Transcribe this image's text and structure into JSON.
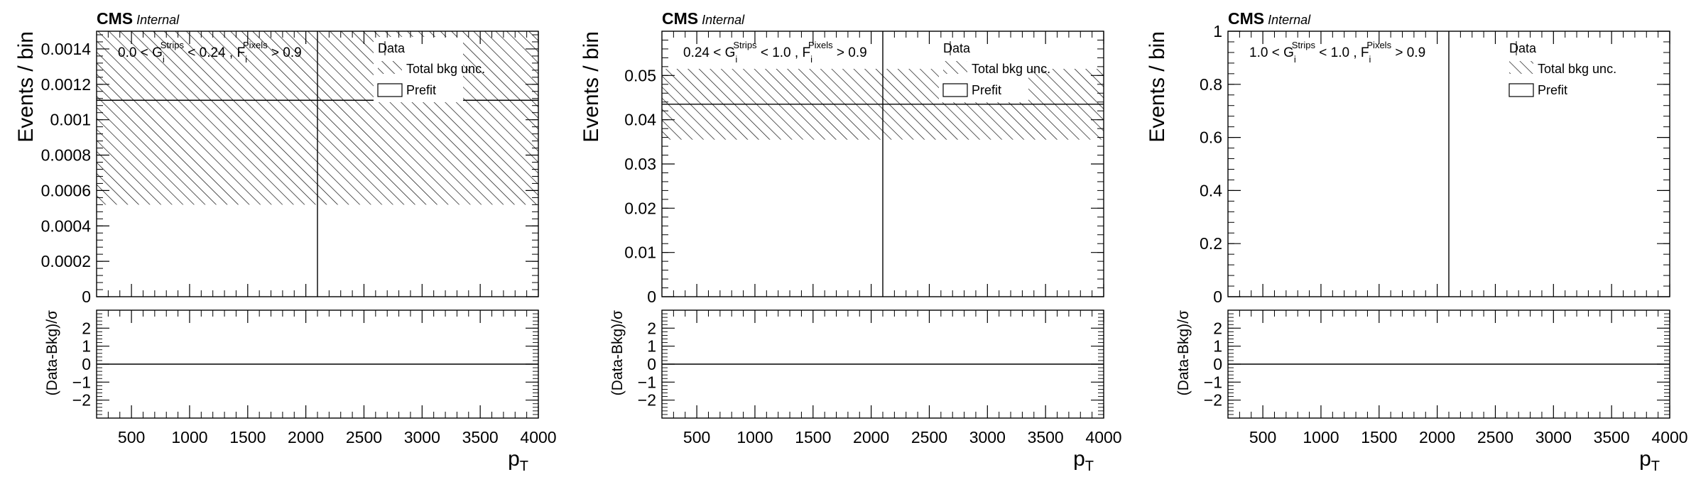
{
  "chart_data": [
    {
      "type": "bar",
      "header": {
        "experiment": "CMS",
        "status": "Internal"
      },
      "region": {
        "lo": "0.0",
        "hi": "0.24",
        "cut": "0.9",
        "sym1": "G",
        "sup1": "Strips",
        "sym2": "F",
        "sup2": "Pixels",
        "sub": "i"
      },
      "ylabel": "Events / bin",
      "ratio_ylabel": "(Data-Bkg)/σ",
      "xlabel": "p",
      "xlabel_sub": "T",
      "xlim": [
        200,
        4000
      ],
      "ylim": [
        0,
        0.0015
      ],
      "yticks": [
        0,
        0.0002,
        0.0004,
        0.0006,
        0.0008,
        0.001,
        0.0012,
        0.0014
      ],
      "ytick_labels": [
        "0",
        "0.0002",
        "0.0004",
        "0.0006",
        "0.0008",
        "0.001",
        "0.0012",
        "0.0014"
      ],
      "xticks": [
        500,
        1000,
        1500,
        2000,
        2500,
        3000,
        3500,
        4000
      ],
      "xtick_labels": [
        "500",
        "1000",
        "1500",
        "2000",
        "2500",
        "3000",
        "3500",
        "4000"
      ],
      "bins": [
        {
          "lo": 200,
          "hi": 2100,
          "prefit": 0.00111,
          "unc_lo": 0.00052,
          "unc_hi": 0.0015
        },
        {
          "lo": 2100,
          "hi": 4000,
          "prefit": 0.00111,
          "unc_lo": 0.00052,
          "unc_hi": 0.0015
        }
      ],
      "ratio_ylim": [
        -3,
        3
      ],
      "ratio_yticks": [
        -2,
        -1,
        0,
        1,
        2
      ],
      "ratio_ytick_labels": [
        "−2",
        "−1",
        "0",
        "1",
        "2"
      ],
      "ratio_line": 0,
      "legend": [
        "Data",
        "Total bkg unc.",
        "Prefit"
      ]
    },
    {
      "type": "bar",
      "header": {
        "experiment": "CMS",
        "status": "Internal"
      },
      "region": {
        "lo": "0.24",
        "hi": "1.0",
        "cut": "0.9",
        "sym1": "G",
        "sup1": "Strips",
        "sym2": "F",
        "sup2": "Pixels",
        "sub": "i"
      },
      "ylabel": "Events / bin",
      "ratio_ylabel": "(Data-Bkg)/σ",
      "xlabel": "p",
      "xlabel_sub": "T",
      "xlim": [
        200,
        4000
      ],
      "ylim": [
        0,
        0.06
      ],
      "yticks": [
        0,
        0.01,
        0.02,
        0.03,
        0.04,
        0.05
      ],
      "ytick_labels": [
        "0",
        "0.01",
        "0.02",
        "0.03",
        "0.04",
        "0.05"
      ],
      "xticks": [
        500,
        1000,
        1500,
        2000,
        2500,
        3000,
        3500,
        4000
      ],
      "xtick_labels": [
        "500",
        "1000",
        "1500",
        "2000",
        "2500",
        "3000",
        "3500",
        "4000"
      ],
      "bins": [
        {
          "lo": 200,
          "hi": 2100,
          "prefit": 0.0435,
          "unc_lo": 0.0355,
          "unc_hi": 0.0515
        },
        {
          "lo": 2100,
          "hi": 4000,
          "prefit": 0.0435,
          "unc_lo": 0.0355,
          "unc_hi": 0.0515
        }
      ],
      "ratio_ylim": [
        -3,
        3
      ],
      "ratio_yticks": [
        -2,
        -1,
        0,
        1,
        2
      ],
      "ratio_ytick_labels": [
        "−2",
        "−1",
        "0",
        "1",
        "2"
      ],
      "ratio_line": 0,
      "legend": [
        "Data",
        "Total bkg unc.",
        "Prefit"
      ]
    },
    {
      "type": "bar",
      "header": {
        "experiment": "CMS",
        "status": "Internal"
      },
      "region": {
        "lo": "1.0",
        "hi": "1.0",
        "cut": "0.9",
        "sym1": "G",
        "sup1": "Strips",
        "sym2": "F",
        "sup2": "Pixels",
        "sub": "i"
      },
      "ylabel": "Events / bin",
      "ratio_ylabel": "(Data-Bkg)/σ",
      "xlabel": "p",
      "xlabel_sub": "T",
      "xlim": [
        200,
        4000
      ],
      "ylim": [
        0,
        1
      ],
      "yticks": [
        0,
        0.2,
        0.4,
        0.6,
        0.8,
        1
      ],
      "ytick_labels": [
        "0",
        "0.2",
        "0.4",
        "0.6",
        "0.8",
        "1"
      ],
      "xticks": [
        500,
        1000,
        1500,
        2000,
        2500,
        3000,
        3500,
        4000
      ],
      "xtick_labels": [
        "500",
        "1000",
        "1500",
        "2000",
        "2500",
        "3000",
        "3500",
        "4000"
      ],
      "bins": [
        {
          "lo": 200,
          "hi": 2100,
          "prefit": 0,
          "unc_lo": 0,
          "unc_hi": 0
        },
        {
          "lo": 2100,
          "hi": 4000,
          "prefit": 0,
          "unc_lo": 0,
          "unc_hi": 0
        }
      ],
      "ratio_ylim": [
        -3,
        3
      ],
      "ratio_yticks": [
        -2,
        -1,
        0,
        1,
        2
      ],
      "ratio_ytick_labels": [
        "−2",
        "−1",
        "0",
        "1",
        "2"
      ],
      "ratio_line": 0,
      "legend": [
        "Data",
        "Total bkg unc.",
        "Prefit"
      ]
    }
  ]
}
